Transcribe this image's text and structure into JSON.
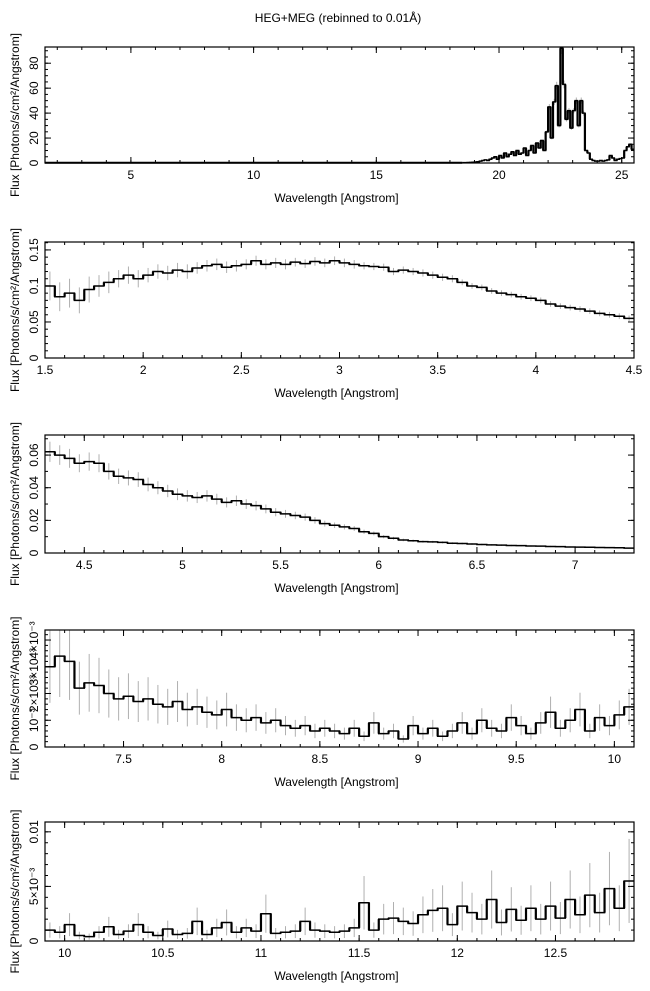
{
  "title": "HEG+MEG (rebinned to 0.01Å)",
  "colors": {
    "data": "#000000",
    "errorbar": "#b0b0b0",
    "frame": "#000000"
  },
  "chart_data": [
    {
      "type": "line",
      "style": "histogram-with-errorbars",
      "xlabel": "Wavelength [Angstrom]",
      "ylabel": "Flux [Photons/s/cm²/Angstrom]",
      "xlim": [
        1.5,
        25.5
      ],
      "ylim": [
        0,
        93
      ],
      "xticks": [
        {
          "v": 5,
          "label": "5"
        },
        {
          "v": 10,
          "label": "10"
        },
        {
          "v": 15,
          "label": "15"
        },
        {
          "v": 20,
          "label": "20"
        },
        {
          "v": 25,
          "label": "25"
        }
      ],
      "xminor": 1,
      "yticks": [
        {
          "v": 0,
          "label": "0"
        },
        {
          "v": 20,
          "label": "20"
        },
        {
          "v": 40,
          "label": "40"
        },
        {
          "v": 60,
          "label": "60"
        },
        {
          "v": 80,
          "label": "80"
        }
      ],
      "yminor": 5,
      "baseline_value": 0.2,
      "x_start": 18.5,
      "x_step": 0.1,
      "values": [
        0.3,
        0.3,
        0.4,
        0.5,
        0.6,
        0.8,
        1,
        1.5,
        2,
        2.5,
        2,
        3,
        4,
        5,
        3,
        6,
        4,
        8,
        5,
        7,
        9,
        6,
        10,
        7,
        8,
        12,
        6,
        10,
        14,
        8,
        16,
        12,
        18,
        10,
        25,
        45,
        20,
        49,
        62,
        30,
        92,
        63,
        35,
        42,
        28,
        42,
        50,
        30,
        50,
        40,
        10,
        8,
        3,
        2,
        1.5,
        1.5,
        2,
        1.5,
        2,
        2.5,
        6,
        4,
        2,
        3,
        3.5,
        4,
        10,
        13,
        15,
        11
      ],
      "error_fraction": 0.05
    },
    {
      "type": "line",
      "style": "histogram-with-errorbars",
      "xlabel": "Wavelength [Angstrom]",
      "ylabel": "Flux [Photons/s/cm²/Angstrom]",
      "xlim": [
        1.5,
        4.5
      ],
      "ylim": [
        0,
        0.161
      ],
      "xticks": [
        {
          "v": 1.5,
          "label": "1.5"
        },
        {
          "v": 2,
          "label": "2"
        },
        {
          "v": 2.5,
          "label": "2.5"
        },
        {
          "v": 3,
          "label": "3"
        },
        {
          "v": 3.5,
          "label": "3.5"
        },
        {
          "v": 4,
          "label": "4"
        },
        {
          "v": 4.5,
          "label": "4.5"
        }
      ],
      "xminor": 0.1,
      "yticks": [
        {
          "v": 0,
          "label": "0"
        },
        {
          "v": 0.05,
          "label": "0.05"
        },
        {
          "v": 0.1,
          "label": "0.1"
        },
        {
          "v": 0.15,
          "label": "0.15"
        }
      ],
      "yminor": 0.01,
      "x_start": 1.5,
      "x_step": 0.05,
      "values": [
        0.1,
        0.085,
        0.09,
        0.08,
        0.095,
        0.1,
        0.105,
        0.11,
        0.115,
        0.11,
        0.115,
        0.12,
        0.118,
        0.122,
        0.12,
        0.125,
        0.128,
        0.13,
        0.126,
        0.128,
        0.13,
        0.135,
        0.13,
        0.132,
        0.13,
        0.133,
        0.131,
        0.134,
        0.132,
        0.135,
        0.132,
        0.13,
        0.128,
        0.127,
        0.126,
        0.12,
        0.122,
        0.12,
        0.118,
        0.115,
        0.112,
        0.11,
        0.105,
        0.1,
        0.098,
        0.093,
        0.09,
        0.088,
        0.085,
        0.083,
        0.08,
        0.075,
        0.072,
        0.07,
        0.068,
        0.065,
        0.062,
        0.06,
        0.058,
        0.055
      ],
      "errors": [
        0.02,
        0.02,
        0.02,
        0.018,
        0.018,
        0.015,
        0.015,
        0.012,
        0.012,
        0.012,
        0.01,
        0.01,
        0.01,
        0.01,
        0.01,
        0.008,
        0.008,
        0.008,
        0.008,
        0.008,
        0.007,
        0.007,
        0.007,
        0.007,
        0.007,
        0.006,
        0.006,
        0.006,
        0.006,
        0.006,
        0.006,
        0.006,
        0.005,
        0.005,
        0.005,
        0.005,
        0.005,
        0.005,
        0.005,
        0.005,
        0.005,
        0.005,
        0.004,
        0.004,
        0.004,
        0.004,
        0.004,
        0.004,
        0.004,
        0.004,
        0.004,
        0.004,
        0.004,
        0.004,
        0.004,
        0.004,
        0.004,
        0.004,
        0.004,
        0.004
      ]
    },
    {
      "type": "line",
      "style": "histogram-with-errorbars",
      "xlabel": "Wavelength [Angstrom]",
      "ylabel": "Flux [Photons/s/cm²/Angstrom]",
      "xlim": [
        4.3,
        7.3
      ],
      "ylim": [
        0,
        0.0723
      ],
      "xticks": [
        {
          "v": 4.5,
          "label": "4.5"
        },
        {
          "v": 5,
          "label": "5"
        },
        {
          "v": 5.5,
          "label": "5.5"
        },
        {
          "v": 6,
          "label": "6"
        },
        {
          "v": 6.5,
          "label": "6.5"
        },
        {
          "v": 7,
          "label": "7"
        }
      ],
      "xminor": 0.1,
      "yticks": [
        {
          "v": 0,
          "label": "0"
        },
        {
          "v": 0.02,
          "label": "0.02"
        },
        {
          "v": 0.04,
          "label": "0.04"
        },
        {
          "v": 0.06,
          "label": "0.06"
        }
      ],
      "yminor": 0.01,
      "x_start": 4.3,
      "x_step": 0.05,
      "values": [
        0.062,
        0.06,
        0.058,
        0.055,
        0.056,
        0.055,
        0.05,
        0.047,
        0.046,
        0.045,
        0.042,
        0.04,
        0.038,
        0.036,
        0.035,
        0.034,
        0.035,
        0.033,
        0.031,
        0.032,
        0.03,
        0.029,
        0.027,
        0.025,
        0.024,
        0.023,
        0.022,
        0.02,
        0.018,
        0.017,
        0.016,
        0.015,
        0.013,
        0.012,
        0.01,
        0.009,
        0.008,
        0.0075,
        0.007,
        0.0068,
        0.0065,
        0.006,
        0.0058,
        0.0055,
        0.0052,
        0.005,
        0.0048,
        0.0046,
        0.0045,
        0.0043,
        0.0042,
        0.004,
        0.0039,
        0.0037,
        0.0036,
        0.0035,
        0.0034,
        0.0033,
        0.0032,
        0.003
      ],
      "error_fraction": 0.1
    },
    {
      "type": "line",
      "style": "histogram-with-errorbars",
      "xlabel": "Wavelength [Angstrom]",
      "ylabel": "Flux [Photons/s/cm²/Angstrom]",
      "xlim": [
        7.1,
        10.1
      ],
      "ylim": [
        0,
        0.004375
      ],
      "xticks": [
        {
          "v": 7.5,
          "label": "7.5"
        },
        {
          "v": 8,
          "label": "8"
        },
        {
          "v": 8.5,
          "label": "8.5"
        },
        {
          "v": 9,
          "label": "9"
        },
        {
          "v": 9.5,
          "label": "9.5"
        },
        {
          "v": 10,
          "label": "10"
        }
      ],
      "xminor": 0.1,
      "yticks": [
        {
          "v": 0,
          "label": "0"
        },
        {
          "v": 0.001,
          "label": "10⁻³"
        },
        {
          "v": 0.002,
          "label": "2×10⁻³"
        },
        {
          "v": 0.003,
          "label": "3×10⁻³"
        },
        {
          "v": 0.004,
          "label": "4×10⁻³"
        }
      ],
      "yminor": 0.0002,
      "x_start": 7.1,
      "x_step": 0.05,
      "values": [
        0.003,
        0.0034,
        0.0032,
        0.0022,
        0.0024,
        0.0023,
        0.002,
        0.0018,
        0.0019,
        0.0017,
        0.0018,
        0.0016,
        0.0015,
        0.0017,
        0.0014,
        0.0015,
        0.0013,
        0.0012,
        0.0014,
        0.0011,
        0.001,
        0.0011,
        0.0009,
        0.001,
        0.0008,
        0.0007,
        0.0008,
        0.0006,
        0.0007,
        0.0006,
        0.0005,
        0.0007,
        0.0004,
        0.0009,
        0.0005,
        0.0006,
        0.0003,
        0.0008,
        0.0005,
        0.0007,
        0.0004,
        0.0006,
        0.0009,
        0.0005,
        0.001,
        0.0007,
        0.0006,
        0.0011,
        0.0008,
        0.0005,
        0.0009,
        0.0013,
        0.0007,
        0.001,
        0.0014,
        0.0006,
        0.0011,
        0.0008,
        0.0012,
        0.0015
      ],
      "error_fraction": 0.45
    },
    {
      "type": "line",
      "style": "histogram-with-errorbars",
      "xlabel": "Wavelength [Angstrom]",
      "ylabel": "Flux [Photons/s/cm²/Angstrom]",
      "xlim": [
        9.9,
        12.9
      ],
      "ylim": [
        0,
        0.0109
      ],
      "xticks": [
        {
          "v": 10,
          "label": "10"
        },
        {
          "v": 10.5,
          "label": "10.5"
        },
        {
          "v": 11,
          "label": "11"
        },
        {
          "v": 11.5,
          "label": "11.5"
        },
        {
          "v": 12,
          "label": "12"
        },
        {
          "v": 12.5,
          "label": "12.5"
        }
      ],
      "xminor": 0.1,
      "yticks": [
        {
          "v": 0,
          "label": "0"
        },
        {
          "v": 0.005,
          "label": "5×10⁻³"
        },
        {
          "v": 0.01,
          "label": "0.01"
        }
      ],
      "yminor": 0.001,
      "x_start": 9.9,
      "x_step": 0.05,
      "values": [
        0.001,
        0.0008,
        0.0015,
        0.0005,
        0.0004,
        0.0008,
        0.0013,
        0.0006,
        0.0009,
        0.0015,
        0.0008,
        0.0005,
        0.0011,
        0.0006,
        0.0007,
        0.0018,
        0.0006,
        0.0012,
        0.0017,
        0.0008,
        0.0012,
        0.0009,
        0.0025,
        0.0007,
        0.0008,
        0.0009,
        0.0018,
        0.001,
        0.0009,
        0.0008,
        0.0009,
        0.0012,
        0.0035,
        0.001,
        0.002,
        0.0021,
        0.0018,
        0.0016,
        0.0024,
        0.0028,
        0.003,
        0.0015,
        0.0032,
        0.0026,
        0.002,
        0.0038,
        0.0017,
        0.0029,
        0.0019,
        0.003,
        0.002,
        0.0032,
        0.0021,
        0.0038,
        0.0024,
        0.0042,
        0.0026,
        0.0048,
        0.003,
        0.0055
      ],
      "error_fraction": 0.7
    }
  ]
}
